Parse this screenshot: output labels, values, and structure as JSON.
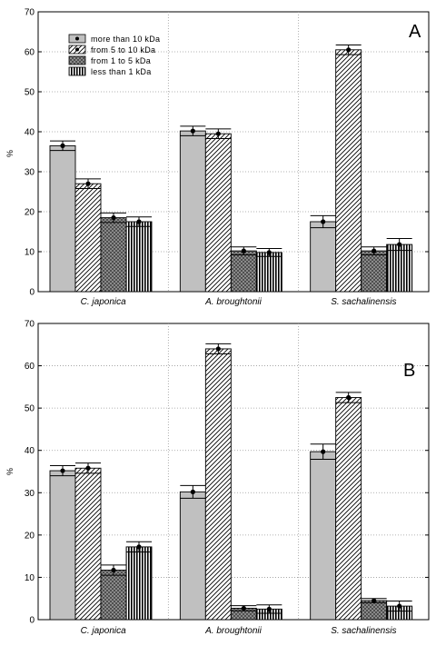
{
  "colors": {
    "bar_solid": "#c0c0c0",
    "bar_dark": "#808080",
    "grid": "#9a9a9a",
    "axis": "#000000"
  },
  "series_patterns": [
    "solid-gray",
    "diagonal-hatch",
    "dark-crosshatch",
    "vertical-stripes"
  ],
  "chart_data": [
    {
      "type": "bar",
      "panel": "A",
      "ylabel": "%",
      "xlabel": "",
      "ylim": [
        0,
        70
      ],
      "yticks": [
        0,
        10,
        20,
        30,
        40,
        50,
        60,
        70
      ],
      "grid": true,
      "legend_position": "top-left",
      "categories": [
        "C. japonica",
        "A. broughtonii",
        "S. sachalinensis"
      ],
      "series": [
        {
          "name": "more than 10 kDa",
          "values": [
            36.5,
            40.2,
            17.5
          ],
          "errors": [
            1.2,
            1.2,
            1.5
          ]
        },
        {
          "name": "from 5 to 10 kDa",
          "values": [
            27.0,
            39.5,
            60.5
          ],
          "errors": [
            1.2,
            1.2,
            1.2
          ]
        },
        {
          "name": "from 1 to 5 kDa",
          "values": [
            18.5,
            10.2,
            10.2
          ],
          "errors": [
            1.2,
            1.0,
            1.0
          ]
        },
        {
          "name": "less than 1 kDa",
          "values": [
            17.5,
            9.8,
            11.8
          ],
          "errors": [
            1.2,
            1.0,
            1.5
          ]
        }
      ]
    },
    {
      "type": "bar",
      "panel": "B",
      "ylabel": "%",
      "xlabel": "",
      "ylim": [
        0,
        70
      ],
      "yticks": [
        0,
        10,
        20,
        30,
        40,
        50,
        60,
        70
      ],
      "grid": true,
      "legend_position": "none",
      "categories": [
        "C. japonica",
        "A. broughtonii",
        "S. sachalinensis"
      ],
      "series": [
        {
          "name": "",
          "values": [
            35.2,
            30.2,
            39.7
          ],
          "errors": [
            1.2,
            1.5,
            1.8
          ]
        },
        {
          "name": "",
          "values": [
            35.8,
            64.0,
            52.5
          ],
          "errors": [
            1.2,
            1.2,
            1.2
          ]
        },
        {
          "name": "",
          "values": [
            11.7,
            2.7,
            4.5
          ],
          "errors": [
            1.2,
            0.6,
            0.5
          ]
        },
        {
          "name": "",
          "values": [
            17.2,
            2.5,
            3.2
          ],
          "errors": [
            1.2,
            1.0,
            1.2
          ]
        }
      ]
    }
  ]
}
